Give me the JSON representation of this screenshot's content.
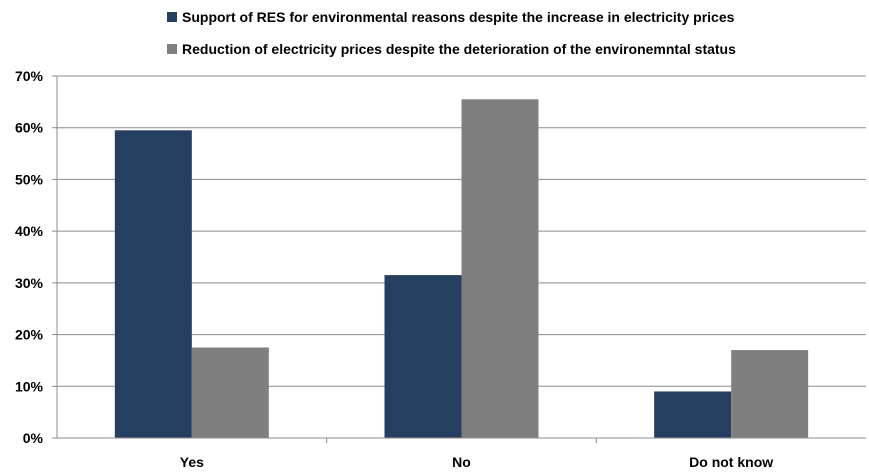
{
  "chart_data": {
    "type": "bar",
    "title": "",
    "xlabel": "",
    "ylabel": "",
    "categories": [
      "Yes",
      "No",
      "Do not know"
    ],
    "series": [
      {
        "name": "Support of RES for environmental reasons despite the increase in electricity prices",
        "color": "#243f60",
        "values": [
          59.5,
          31.5,
          9
        ]
      },
      {
        "name": "Reduction of electricity prices despite the deterioration of the environemntal status",
        "color": "#7f7f7f",
        "values": [
          17.5,
          65.5,
          17
        ]
      }
    ],
    "ylim": [
      0,
      70
    ],
    "yticks": [
      0,
      10,
      20,
      30,
      40,
      50,
      60,
      70
    ],
    "ytick_format": "percent",
    "grid": true,
    "legend_position": "top"
  }
}
